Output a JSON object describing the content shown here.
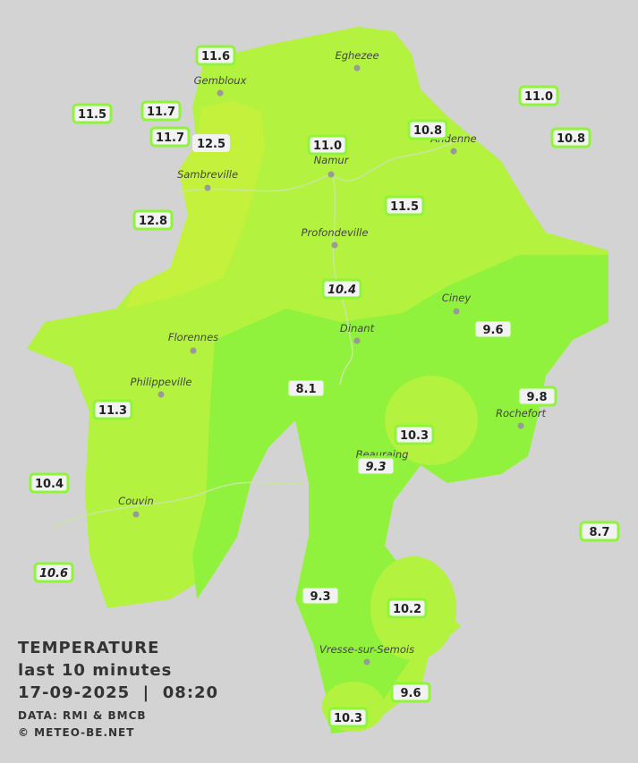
{
  "legend": {
    "title": "TEMPERATURE",
    "subtitle": "last 10 minutes",
    "datetime": "17-09-2025  |  08:20",
    "source": "DATA: RMI & BMCB",
    "credit": "© METEO-BE.NET"
  },
  "cities": [
    {
      "name": "Eghezee"
    },
    {
      "name": "Gembloux"
    },
    {
      "name": "Andenne"
    },
    {
      "name": "Namur"
    },
    {
      "name": "Sambreville"
    },
    {
      "name": "Profondeville"
    },
    {
      "name": "Ciney"
    },
    {
      "name": "Dinant"
    },
    {
      "name": "Florennes"
    },
    {
      "name": "Philippeville"
    },
    {
      "name": "Rochefort"
    },
    {
      "name": "Beauraing"
    },
    {
      "name": "Couvin"
    },
    {
      "name": "Vresse-sur-Semois"
    }
  ],
  "stations": [
    {
      "value": "11.6"
    },
    {
      "value": "11.5"
    },
    {
      "value": "11.7"
    },
    {
      "value": "11.7"
    },
    {
      "value": "12.5"
    },
    {
      "value": "11.0"
    },
    {
      "value": "10.8"
    },
    {
      "value": "11.0"
    },
    {
      "value": "10.8"
    },
    {
      "value": "11.5"
    },
    {
      "value": "12.8"
    },
    {
      "value": "10.4"
    },
    {
      "value": "9.6"
    },
    {
      "value": "8.1"
    },
    {
      "value": "9.8"
    },
    {
      "value": "11.3"
    },
    {
      "value": "10.3"
    },
    {
      "value": "9.3"
    },
    {
      "value": "10.4"
    },
    {
      "value": "8.7"
    },
    {
      "value": "10.6"
    },
    {
      "value": "9.3"
    },
    {
      "value": "10.2"
    },
    {
      "value": "9.6"
    },
    {
      "value": "10.3"
    }
  ]
}
